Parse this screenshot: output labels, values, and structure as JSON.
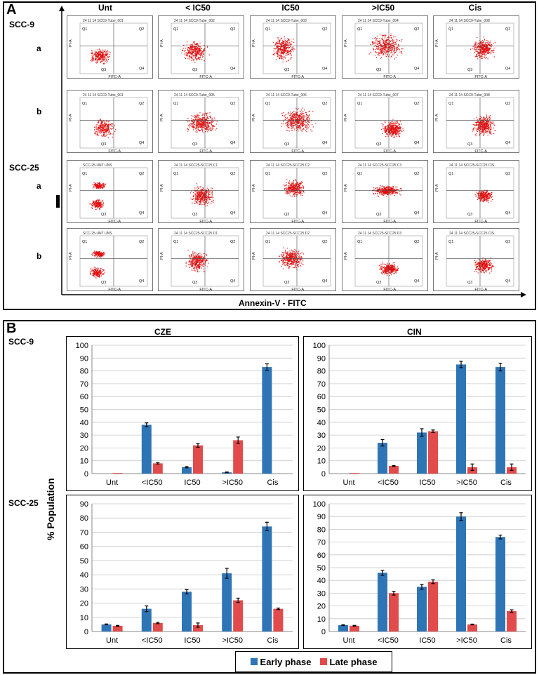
{
  "panel_a": {
    "label": "A",
    "columns": [
      "Unt",
      "< IC50",
      "IC50",
      ">IC50",
      "Cis"
    ],
    "line_groups": [
      {
        "name": "SCC-9",
        "rows": [
          "a",
          "b"
        ]
      },
      {
        "name": "SCC-25",
        "rows": [
          "a",
          "b"
        ]
      }
    ],
    "x_axis_label": "Annexin-V - FITC",
    "axis_small_y": "PI-A",
    "axis_small_x": "FITC-A",
    "quadrants": [
      "Q1",
      "Q2",
      "Q3",
      "Q4"
    ],
    "tile_titles": [
      [
        "24 11 14 SCC9-Tube_001",
        "24 11 14 SCC9-Tube_002",
        "24 11 14 SCC9-Tube_003",
        "24 11 14 SCC9-Tube_004",
        "24 11 14 SCC9-Tube_008"
      ],
      [
        "24 11 14 SCC9-Tube_001",
        "24 11 14 SCC9-Tube_005",
        "24 11 14 SCC9-Tube_006",
        "24 11 14 SCC9-Tube_007",
        "24 11 14 SCC9-Tube_008"
      ],
      [
        "SCC-25-UNT UNS",
        "24 11 14 SCC25-SCC25 C1",
        "24 11 14 SCC25-SCC25 C2",
        "24 11 14 SCC25-SCC25 C3",
        "24 11 14 SCC25-SCC25 CIS"
      ],
      [
        "SCC-25-UNT UNS",
        "24 11 14 SCC25-SCC25 D1",
        "24 11 14 SCC25-SCC25 D2",
        "24 11 14 SCC25-SCC25 D3",
        "24 11 14 SCC25-SCC25 CIS"
      ]
    ]
  },
  "panel_b": {
    "label": "B",
    "column_titles": [
      "CZE",
      "CIN"
    ],
    "row_titles": [
      "SCC-9",
      "SCC-25"
    ],
    "y_axis_label": "% Population",
    "legend": [
      {
        "label": "Early phase",
        "color": "#2e75b6"
      },
      {
        "label": "Late phase",
        "color": "#e24b4b"
      }
    ]
  },
  "chart_data": [
    {
      "type": "bar",
      "title": "CZE",
      "group": "SCC-9",
      "categories": [
        "Unt",
        "<IC50",
        "IC50",
        ">IC50",
        "Cis"
      ],
      "ylim": [
        0,
        100
      ],
      "yticks": [
        0,
        10,
        20,
        30,
        40,
        50,
        60,
        70,
        80,
        90,
        100
      ],
      "series": [
        {
          "name": "Early phase",
          "values": [
            0,
            38,
            5,
            1,
            83
          ],
          "errors": [
            0,
            1.5,
            0.5,
            0.3,
            2.5
          ]
        },
        {
          "name": "Late phase",
          "values": [
            0.5,
            8,
            22,
            26,
            0
          ],
          "errors": [
            0,
            0.5,
            1.5,
            2.5,
            0
          ]
        }
      ]
    },
    {
      "type": "bar",
      "title": "CIN",
      "group": "SCC-9",
      "categories": [
        "Unt",
        "<IC50",
        "IC50",
        ">IC50",
        "Cis"
      ],
      "ylim": [
        0,
        100
      ],
      "yticks": [
        0,
        10,
        20,
        30,
        40,
        50,
        60,
        70,
        80,
        90,
        100
      ],
      "series": [
        {
          "name": "Early phase",
          "values": [
            0,
            24,
            32,
            85,
            83
          ],
          "errors": [
            0,
            2.5,
            3,
            2.5,
            3
          ]
        },
        {
          "name": "Late phase",
          "values": [
            0.5,
            6,
            33,
            5,
            5
          ],
          "errors": [
            0,
            0.3,
            1,
            2.5,
            2.5
          ]
        }
      ]
    },
    {
      "type": "bar",
      "title": "CZE",
      "group": "SCC-25",
      "categories": [
        "Unt",
        "<IC50",
        "IC50",
        ">IC50",
        "Cis"
      ],
      "ylim": [
        0,
        90
      ],
      "yticks": [
        0,
        10,
        20,
        30,
        40,
        50,
        60,
        70,
        80,
        90
      ],
      "series": [
        {
          "name": "Early phase",
          "values": [
            5,
            16,
            28,
            41,
            74
          ],
          "errors": [
            0.3,
            2,
            1.5,
            3.5,
            3
          ]
        },
        {
          "name": "Late phase",
          "values": [
            4,
            6,
            4.5,
            22,
            16
          ],
          "errors": [
            0.3,
            0.5,
            1.5,
            1.5,
            0.5
          ]
        }
      ]
    },
    {
      "type": "bar",
      "title": "CIN",
      "group": "SCC-25",
      "categories": [
        "Unt",
        "<IC50",
        "IC50",
        ">IC50",
        "Cis"
      ],
      "ylim": [
        0,
        100
      ],
      "yticks": [
        0,
        10,
        20,
        30,
        40,
        50,
        60,
        70,
        80,
        90,
        100
      ],
      "series": [
        {
          "name": "Early phase",
          "values": [
            5,
            46,
            35,
            90,
            74
          ],
          "errors": [
            0.3,
            2,
            2,
            3,
            1.5
          ]
        },
        {
          "name": "Late phase",
          "values": [
            4.5,
            30,
            39,
            5.5,
            16
          ],
          "errors": [
            0.3,
            1.5,
            1.5,
            0.3,
            1
          ]
        }
      ]
    }
  ]
}
